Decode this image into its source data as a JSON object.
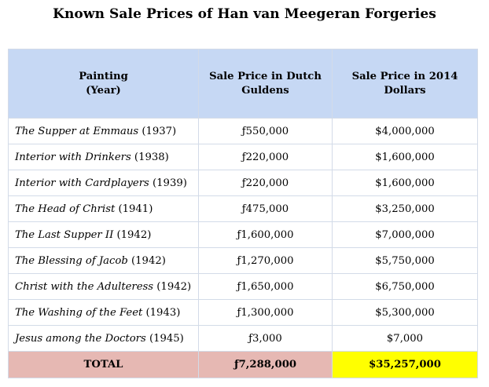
{
  "title": "Known Sale Prices of Han van Meegeran Forgeries",
  "headers": {
    "painting": "Painting\n(Year)",
    "guilders": "Sale Price in Dutch\nGuldens",
    "dollars": "Sale Price in 2014\nDollars"
  },
  "rows": [
    {
      "title": "The Supper at Emmaus",
      "year": "(1937)",
      "guilders": "ƒ550,000",
      "dollars": "$4,000,000"
    },
    {
      "title": "Interior with Drinkers",
      "year": "(1938)",
      "guilders": "ƒ220,000",
      "dollars": "$1,600,000"
    },
    {
      "title": "Interior with Cardplayers",
      "year": "(1939)",
      "guilders": "ƒ220,000",
      "dollars": "$1,600,000"
    },
    {
      "title": "The Head of Christ",
      "year": "(1941)",
      "guilders": "ƒ475,000",
      "dollars": "$3,250,000"
    },
    {
      "title": "The Last Supper II",
      "year": "(1942)",
      "guilders": "ƒ1,600,000",
      "dollars": "$7,000,000"
    },
    {
      "title": "The Blessing of Jacob",
      "year": "(1942)",
      "guilders": "ƒ1,270,000",
      "dollars": "$5,750,000"
    },
    {
      "title": "Christ with the Adulteress",
      "year": "(1942)",
      "guilders": "ƒ1,650,000",
      "dollars": "$6,750,000"
    },
    {
      "title": "The Washing of the Feet",
      "year": "(1943)",
      "guilders": "ƒ1,300,000",
      "dollars": "$5,300,000"
    },
    {
      "title": "Jesus among the Doctors",
      "year": "(1945)",
      "guilders": "ƒ3,000",
      "dollars": "$7,000"
    }
  ],
  "total": {
    "label": "TOTAL",
    "guilders": "ƒ7,288,000",
    "dollars": "$35,257,000"
  },
  "colors": {
    "header_bg": "#c6d8f4",
    "total_bg": "#e6b8b3",
    "highlight_bg": "#ffff00"
  }
}
